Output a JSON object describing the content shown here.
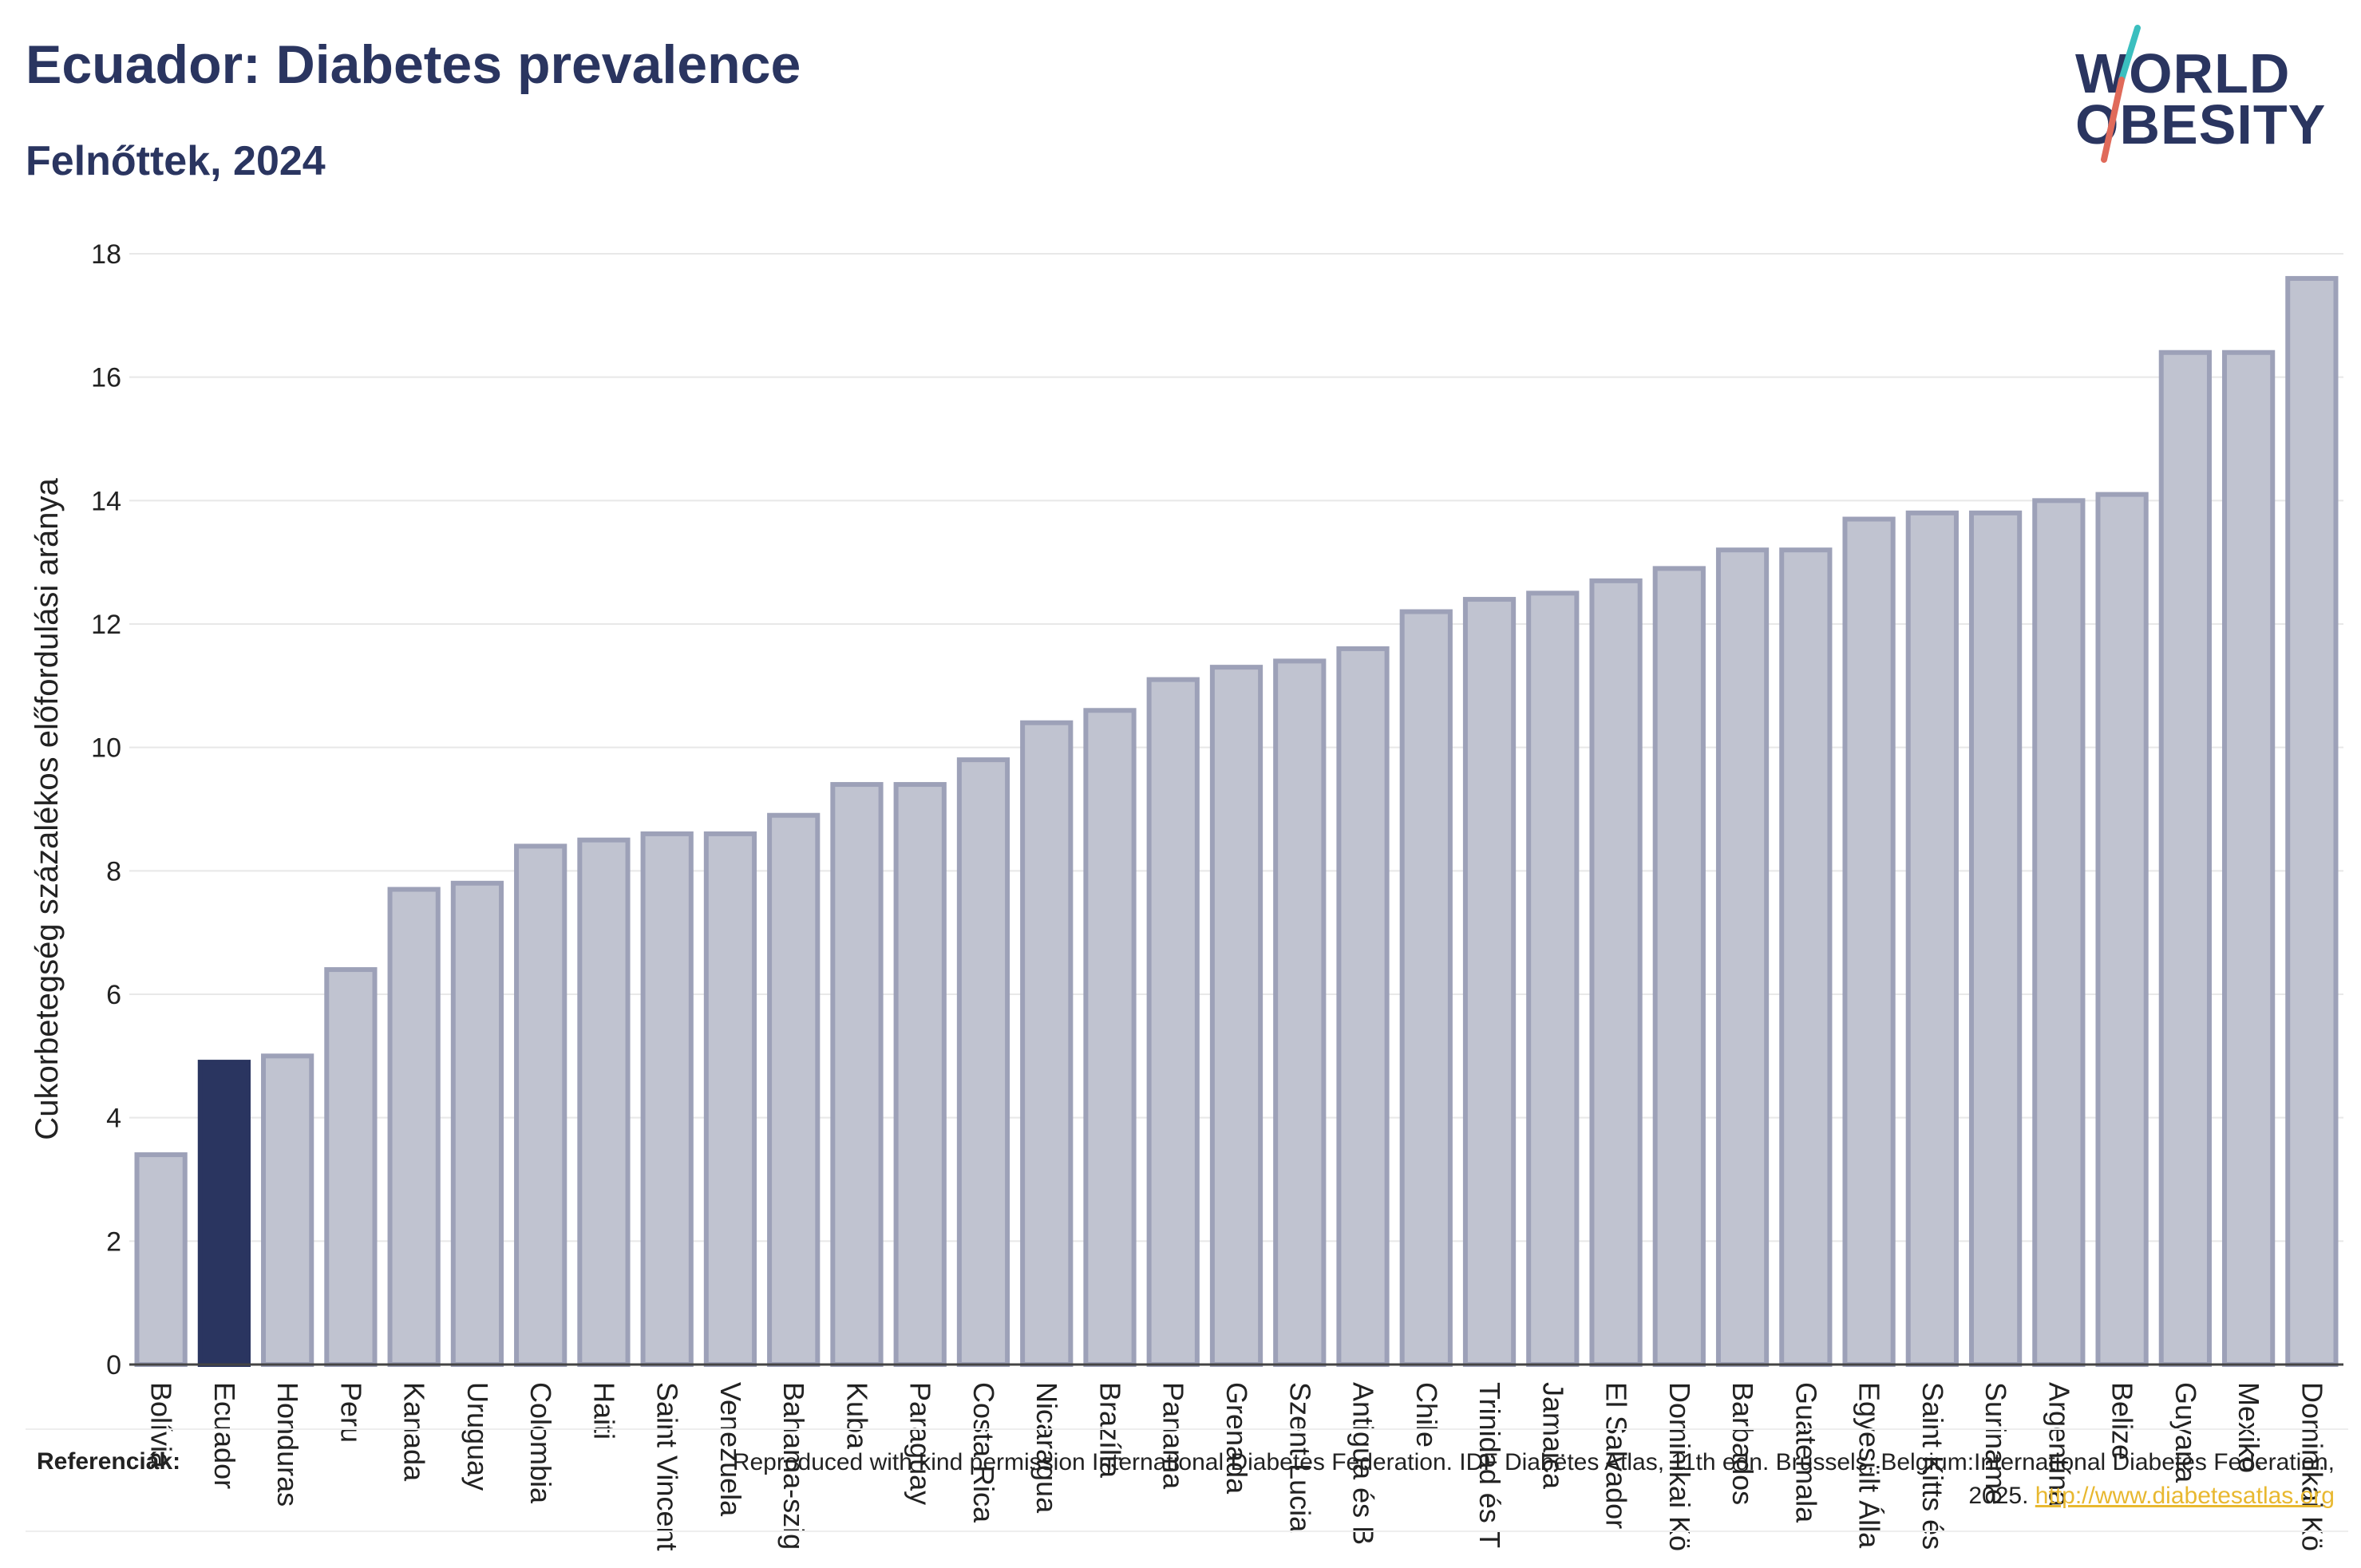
{
  "header": {
    "title": "Ecuador: Diabetes prevalence",
    "subtitle": "Felnőttek, 2024"
  },
  "logo": {
    "line1": "WORLD",
    "line2": "OBESITY",
    "colors": {
      "text": "#2a3560",
      "slash_top": "#3bbfbf",
      "slash_bottom": "#e06a5a"
    }
  },
  "references": {
    "label": "Referenciák:",
    "text": "Reproduced with kind permission International Diabetes Federation. IDF Diabetes Atlas, 11th edn. Brussels, Belgium:International Diabetes Federation, 2025.",
    "link": "http://www.diabetesatlas.org"
  },
  "colors": {
    "bar_fill": "#c0c3d0",
    "bar_stroke": "#9da1b8",
    "highlight": "#2a3560",
    "grid": "#e8e8e8",
    "text": "#222222"
  },
  "chart_data": {
    "type": "bar",
    "ylabel": "Cukorbetegség százalékos előfordulási aránya",
    "xlabel": "",
    "ylim": [
      0,
      18
    ],
    "yticks": [
      0,
      2,
      4,
      6,
      8,
      10,
      12,
      14,
      16,
      18
    ],
    "grid": true,
    "highlight": "Ecuador",
    "categories": [
      "Bolívia",
      "Ecuador",
      "Honduras",
      "Peru",
      "Kanada",
      "Uruguay",
      "Colombia",
      "Haiti",
      "Saint Vincent",
      "Venezuela",
      "Bahama-szig",
      "Kuba",
      "Paraguay",
      "Costa Rica",
      "Nicaragua",
      "Brazília",
      "Panama",
      "Grenada",
      "Szent Lucia",
      "Antigua és B",
      "Chile",
      "Trinidad és T",
      "Jamaica",
      "El Salvador",
      "Dominikai Kö",
      "Barbados",
      "Guatemala",
      "Egyesült Álla",
      "Saint Kitts és",
      "Suriname",
      "Argentína",
      "Belize",
      "Guyana",
      "Mexikó",
      "Dominikai Kö"
    ],
    "values": [
      3.4,
      4.9,
      5.0,
      6.4,
      7.7,
      7.8,
      8.4,
      8.5,
      8.6,
      8.6,
      8.9,
      9.4,
      9.4,
      9.8,
      10.4,
      10.6,
      11.1,
      11.3,
      11.4,
      11.6,
      12.2,
      12.4,
      12.5,
      12.7,
      12.9,
      13.2,
      13.2,
      13.7,
      13.8,
      13.8,
      14.0,
      14.1,
      16.4,
      16.4,
      17.6
    ]
  }
}
